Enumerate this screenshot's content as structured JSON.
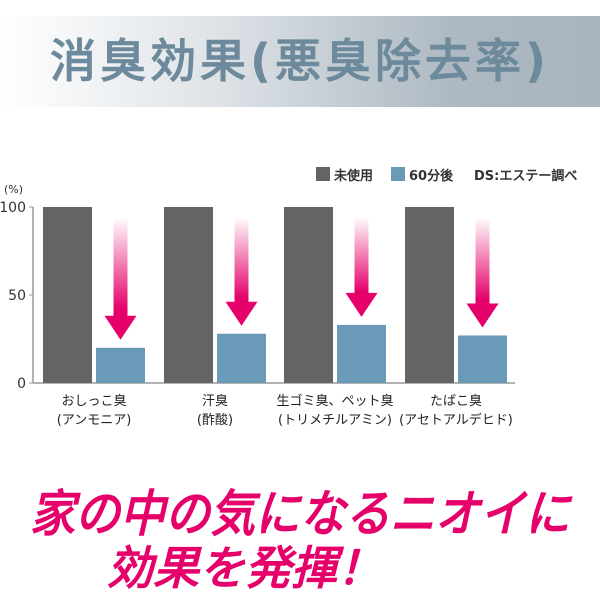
{
  "header": {
    "title": "消臭効果(悪臭除去率)"
  },
  "chart_data": {
    "type": "bar",
    "title": "",
    "ylabel": "(%)",
    "ylim": [
      0,
      100
    ],
    "yticks": [
      0,
      50,
      100
    ],
    "categories": [
      {
        "line1": "おしっこ臭",
        "line2": "(アンモニア)"
      },
      {
        "line1": "汗臭",
        "line2": "(酢酸)"
      },
      {
        "line1": "生ゴミ臭、ペット臭",
        "line2": "(トリメチルアミン)"
      },
      {
        "line1": "たばこ臭",
        "line2": "(アセトアルデヒド)"
      }
    ],
    "series": [
      {
        "name": "未使用",
        "color": "#646464",
        "values": [
          100,
          100,
          100,
          100
        ]
      },
      {
        "name": "60分後",
        "color": "#6b9ab8",
        "values": [
          20,
          28,
          33,
          27
        ]
      }
    ],
    "legend_position": "top-right",
    "note": "DS:エステー調べ",
    "arrow_color": "#e5006a",
    "grid": false
  },
  "slogan": {
    "line1": "家の中の気になるニオイに",
    "line2": "効果を発揮！"
  }
}
